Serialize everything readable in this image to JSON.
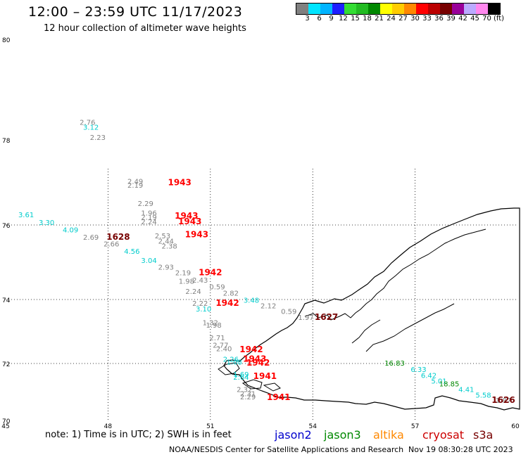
{
  "header": {
    "title": "12:00 – 23:59 UTC 11/17/2023",
    "subtitle": "12 hour collection of altimeter wave heights"
  },
  "legend": {
    "colors": [
      "#808080",
      "#00e5ff",
      "#00b4ff",
      "#1e1eff",
      "#33dd33",
      "#22bb22",
      "#008800",
      "#ffff00",
      "#ffcc00",
      "#ff8800",
      "#ff0000",
      "#bb0000",
      "#770000",
      "#990099",
      "#bbaaff",
      "#ff88ee",
      "#000000"
    ],
    "labels": [
      "3",
      "6",
      "9",
      "12",
      "15",
      "18",
      "21",
      "24",
      "27",
      "30",
      "33",
      "36",
      "39",
      "42",
      "45",
      "70",
      "(ft)"
    ]
  },
  "axes": {
    "lat_ticks": [
      "80",
      "78",
      "76",
      "74",
      "72",
      "70"
    ],
    "lon_ticks": [
      "45",
      "48",
      "51",
      "54",
      "57",
      "60"
    ]
  },
  "observations": [
    {
      "t": "2.76",
      "c": "#808080",
      "lon": 47.4,
      "lat": 78.3
    },
    {
      "t": "3.12",
      "c": "#00cccc",
      "lon": 47.5,
      "lat": 78.2
    },
    {
      "t": "2.23",
      "c": "#808080",
      "lon": 47.7,
      "lat": 78.0
    },
    {
      "t": "2.49",
      "c": "#808080",
      "lon": 48.8,
      "lat": 76.97
    },
    {
      "t": "2.19",
      "c": "#808080",
      "lon": 48.8,
      "lat": 76.88
    },
    {
      "t": "1943",
      "c": "#ff0000",
      "lon": 50.1,
      "lat": 76.93
    },
    {
      "t": "2.29",
      "c": "#808080",
      "lon": 49.1,
      "lat": 76.45
    },
    {
      "t": "1.96",
      "c": "#808080",
      "lon": 49.2,
      "lat": 76.22
    },
    {
      "t": "2.19",
      "c": "#808080",
      "lon": 49.2,
      "lat": 76.12
    },
    {
      "t": "2.24",
      "c": "#808080",
      "lon": 49.2,
      "lat": 76.02
    },
    {
      "t": "1943",
      "c": "#ff0000",
      "lon": 50.3,
      "lat": 76.15
    },
    {
      "t": "1943",
      "c": "#ff0000",
      "lon": 50.4,
      "lat": 76.02
    },
    {
      "t": "1943",
      "c": "#ff0000",
      "lon": 50.6,
      "lat": 75.67
    },
    {
      "t": "3.61",
      "c": "#00cccc",
      "lon": 45.6,
      "lat": 76.18
    },
    {
      "t": "3.30",
      "c": "#00cccc",
      "lon": 46.2,
      "lat": 76.0
    },
    {
      "t": "4.09",
      "c": "#00cccc",
      "lon": 46.9,
      "lat": 75.8
    },
    {
      "t": "2.69",
      "c": "#808080",
      "lon": 47.5,
      "lat": 75.6
    },
    {
      "t": "1628",
      "c": "#770000",
      "lon": 48.3,
      "lat": 75.6
    },
    {
      "t": "2.66",
      "c": "#808080",
      "lon": 48.1,
      "lat": 75.42
    },
    {
      "t": "2.53",
      "c": "#808080",
      "lon": 49.6,
      "lat": 75.64
    },
    {
      "t": "2.44",
      "c": "#808080",
      "lon": 49.7,
      "lat": 75.5
    },
    {
      "t": "2.38",
      "c": "#808080",
      "lon": 49.8,
      "lat": 75.37
    },
    {
      "t": "4.56",
      "c": "#00cccc",
      "lon": 48.7,
      "lat": 75.23
    },
    {
      "t": "3.04",
      "c": "#00cccc",
      "lon": 49.2,
      "lat": 74.98
    },
    {
      "t": "2.93",
      "c": "#808080",
      "lon": 49.7,
      "lat": 74.8
    },
    {
      "t": "1942",
      "c": "#ff0000",
      "lon": 51.0,
      "lat": 74.65
    },
    {
      "t": "2.19",
      "c": "#808080",
      "lon": 50.2,
      "lat": 74.65
    },
    {
      "t": "1.98",
      "c": "#808080",
      "lon": 50.3,
      "lat": 74.42
    },
    {
      "t": "2.43",
      "c": "#808080",
      "lon": 50.7,
      "lat": 74.45
    },
    {
      "t": "0.59",
      "c": "#808080",
      "lon": 51.2,
      "lat": 74.27
    },
    {
      "t": "2.82",
      "c": "#808080",
      "lon": 51.6,
      "lat": 74.1
    },
    {
      "t": "2.24",
      "c": "#808080",
      "lon": 50.5,
      "lat": 74.15
    },
    {
      "t": "3.48",
      "c": "#00cccc",
      "lon": 52.2,
      "lat": 73.9
    },
    {
      "t": "2.22",
      "c": "#808080",
      "lon": 50.7,
      "lat": 73.8
    },
    {
      "t": "1942",
      "c": "#ff0000",
      "lon": 51.5,
      "lat": 73.8
    },
    {
      "t": "2.12",
      "c": "#808080",
      "lon": 52.7,
      "lat": 73.73
    },
    {
      "t": "3.10",
      "c": "#00cccc",
      "lon": 50.8,
      "lat": 73.63
    },
    {
      "t": "0.59",
      "c": "#808080",
      "lon": 53.3,
      "lat": 73.55
    },
    {
      "t": "1.97",
      "c": "#808080",
      "lon": 53.8,
      "lat": 73.36
    },
    {
      "t": "1627",
      "c": "#770000",
      "lon": 54.4,
      "lat": 73.36
    },
    {
      "t": "1.32",
      "c": "#808080",
      "lon": 51.0,
      "lat": 73.2
    },
    {
      "t": "1.98",
      "c": "#808080",
      "lon": 51.1,
      "lat": 73.12
    },
    {
      "t": "2.71",
      "c": "#808080",
      "lon": 51.2,
      "lat": 72.73
    },
    {
      "t": "2.77",
      "c": "#808080",
      "lon": 51.3,
      "lat": 72.5
    },
    {
      "t": "2.40",
      "c": "#808080",
      "lon": 51.4,
      "lat": 72.38
    },
    {
      "t": "1942",
      "c": "#ff0000",
      "lon": 52.2,
      "lat": 72.35
    },
    {
      "t": "2.26",
      "c": "#00cccc",
      "lon": 51.6,
      "lat": 72.05
    },
    {
      "t": "1943",
      "c": "#ff0000",
      "lon": 52.3,
      "lat": 72.05
    },
    {
      "t": "1.08",
      "c": "#00cccc",
      "lon": 51.7,
      "lat": 71.96
    },
    {
      "t": "1942",
      "c": "#ff0000",
      "lon": 52.4,
      "lat": 71.93
    },
    {
      "t": "1.69",
      "c": "#00cccc",
      "lon": 51.9,
      "lat": 71.53
    },
    {
      "t": "2.64",
      "c": "#00cccc",
      "lon": 51.9,
      "lat": 71.43
    },
    {
      "t": "1941",
      "c": "#ff0000",
      "lon": 52.6,
      "lat": 71.46
    },
    {
      "t": "2.32",
      "c": "#808080",
      "lon": 52.0,
      "lat": 71.0
    },
    {
      "t": "2.31",
      "c": "#808080",
      "lon": 52.1,
      "lat": 70.85
    },
    {
      "t": "2.29",
      "c": "#808080",
      "lon": 52.1,
      "lat": 70.74
    },
    {
      "t": "1941",
      "c": "#ff0000",
      "lon": 53.0,
      "lat": 70.72
    },
    {
      "t": "16.83",
      "c": "#008800",
      "lon": 56.4,
      "lat": 71.92
    },
    {
      "t": "6.33",
      "c": "#00cccc",
      "lon": 57.1,
      "lat": 71.7
    },
    {
      "t": "6.42",
      "c": "#00cccc",
      "lon": 57.4,
      "lat": 71.5
    },
    {
      "t": "5.01",
      "c": "#00cccc",
      "lon": 57.7,
      "lat": 71.3
    },
    {
      "t": "18.85",
      "c": "#008800",
      "lon": 58.0,
      "lat": 71.2
    },
    {
      "t": "4.41",
      "c": "#00cccc",
      "lon": 58.5,
      "lat": 71.0
    },
    {
      "t": "5.58",
      "c": "#00cccc",
      "lon": 59.0,
      "lat": 70.8
    },
    {
      "t": "1.87",
      "c": "#808080",
      "lon": 59.6,
      "lat": 70.62
    },
    {
      "t": "1626",
      "c": "#770000",
      "lon": 60.5,
      "lat": 70.62
    }
  ],
  "notes": {
    "note": "note:  1) Time is in UTC;  2) SWH is in feet",
    "satellites": [
      {
        "name": "jason2",
        "color": "#0000cc"
      },
      {
        "name": "jason3",
        "color": "#008800"
      },
      {
        "name": "altika",
        "color": "#ff8800"
      },
      {
        "name": "cryosat",
        "color": "#cc0000"
      },
      {
        "name": "s3a",
        "color": "#770000"
      }
    ],
    "credit": "NOAA/NESDIS Center for Satellite Applications and Research",
    "timestamp": "Nov 19 08:30:28 UTC 2023"
  }
}
